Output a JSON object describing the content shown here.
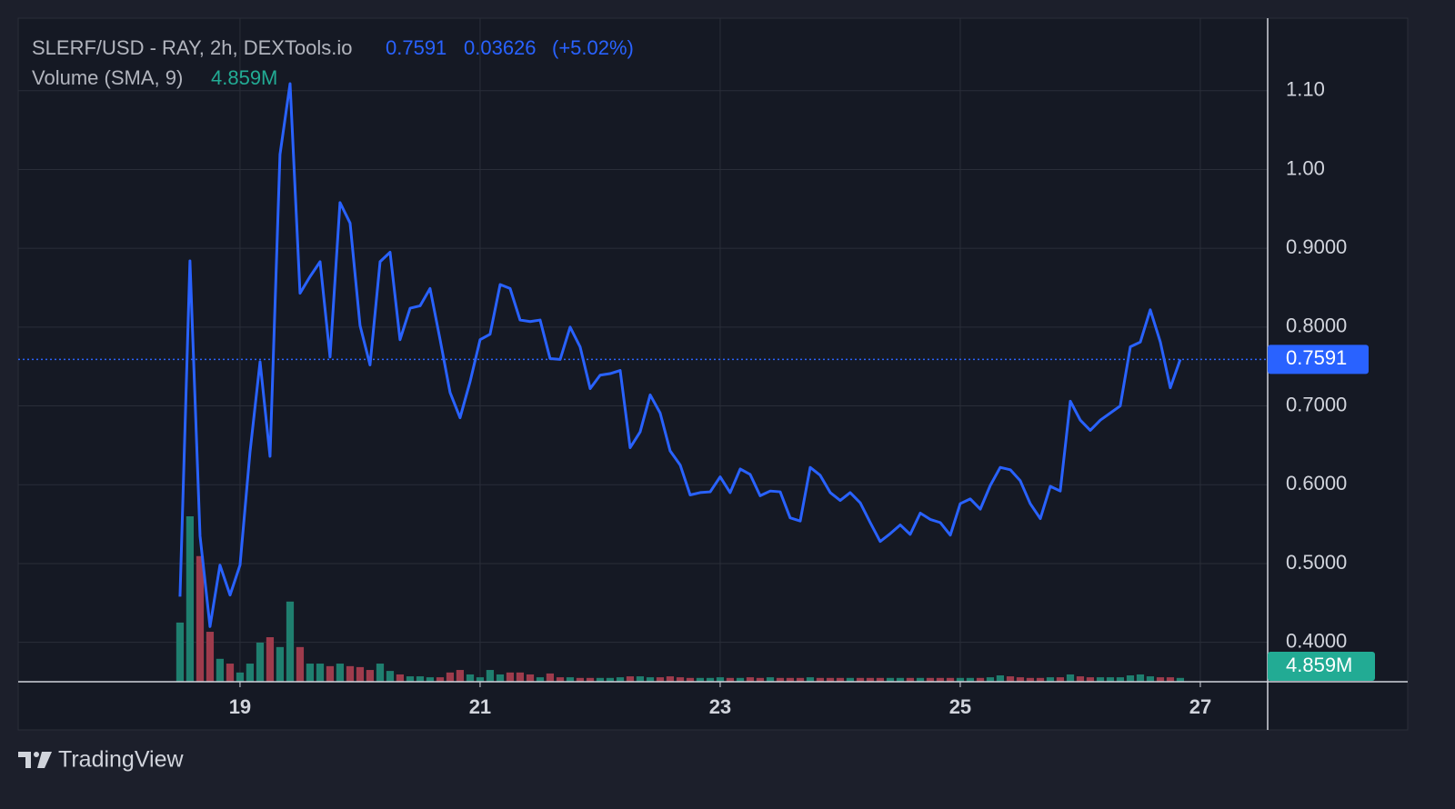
{
  "chart_data": {
    "type": "line",
    "title": "SLERF/USD - RAY, 2h, DEXTools.io",
    "last_price": 0.7591,
    "change": 0.03626,
    "change_percent": {
      "value": 5.02,
      "label": "(+5.02%)"
    },
    "volume_title": "Volume (SMA, 9)",
    "volume_sma": {
      "value": 4.859,
      "label": "4.859M"
    },
    "brand": "TradingView",
    "color": "#2962ff",
    "grid": true,
    "xlim": [
      17.152,
      27.561
    ],
    "xticks": [
      19,
      21,
      23,
      25,
      27
    ],
    "ylim": [
      0.35,
      1.192
    ],
    "yticks": [
      {
        "value": 1.1,
        "label": "1.10"
      },
      {
        "value": 1,
        "label": "1.00"
      },
      {
        "value": 0.9,
        "label": "0.9000"
      },
      {
        "value": 0.8,
        "label": "0.8000"
      },
      {
        "value": 0.7,
        "label": "0.7000"
      },
      {
        "value": 0.6,
        "label": "0.6000"
      },
      {
        "value": 0.5,
        "label": "0.5000"
      },
      {
        "value": 0.4,
        "label": "0.4000"
      }
    ],
    "x": [
      18.5,
      18.583,
      18.667,
      18.75,
      18.833,
      18.917,
      19,
      19.083,
      19.167,
      19.25,
      19.333,
      19.417,
      19.5,
      19.583,
      19.667,
      19.75,
      19.833,
      19.917,
      20,
      20.083,
      20.167,
      20.25,
      20.333,
      20.417,
      20.5,
      20.583,
      20.667,
      20.75,
      20.833,
      20.917,
      21,
      21.083,
      21.167,
      21.25,
      21.333,
      21.417,
      21.5,
      21.583,
      21.667,
      21.75,
      21.833,
      21.917,
      22,
      22.083,
      22.167,
      22.25,
      22.333,
      22.417,
      22.5,
      22.583,
      22.667,
      22.75,
      22.833,
      22.917,
      23,
      23.083,
      23.167,
      23.25,
      23.333,
      23.417,
      23.5,
      23.583,
      23.667,
      23.75,
      23.833,
      23.917,
      24,
      24.083,
      24.167,
      24.25,
      24.333,
      24.417,
      24.5,
      24.583,
      24.667,
      24.75,
      24.833,
      24.917,
      25,
      25.083,
      25.167,
      25.25,
      25.333,
      25.417,
      25.5,
      25.583,
      25.667,
      25.75,
      25.833,
      25.917,
      26,
      26.083,
      26.167,
      26.25,
      26.333,
      26.417,
      26.5,
      26.583,
      26.667,
      26.75,
      26.833
    ],
    "values": [
      0.458,
      0.884,
      0.535,
      0.42,
      0.498,
      0.46,
      0.498,
      0.641,
      0.756,
      0.636,
      1.019,
      1.109,
      0.843,
      0.864,
      0.883,
      0.762,
      0.958,
      0.932,
      0.802,
      0.752,
      0.883,
      0.895,
      0.784,
      0.824,
      0.827,
      0.849,
      0.784,
      0.717,
      0.685,
      0.731,
      0.784,
      0.791,
      0.854,
      0.849,
      0.809,
      0.807,
      0.809,
      0.76,
      0.759,
      0.8,
      0.775,
      0.722,
      0.739,
      0.741,
      0.745,
      0.647,
      0.667,
      0.714,
      0.691,
      0.643,
      0.625,
      0.587,
      0.59,
      0.591,
      0.61,
      0.59,
      0.62,
      0.613,
      0.586,
      0.592,
      0.591,
      0.558,
      0.554,
      0.622,
      0.612,
      0.59,
      0.58,
      0.59,
      0.577,
      0.552,
      0.528,
      0.538,
      0.549,
      0.537,
      0.564,
      0.556,
      0.552,
      0.536,
      0.576,
      0.582,
      0.569,
      0.599,
      0.622,
      0.619,
      0.605,
      0.576,
      0.557,
      0.598,
      0.592,
      0.706,
      0.682,
      0.669,
      0.682,
      0.691,
      0.7,
      0.775,
      0.781,
      0.822,
      0.781,
      0.723,
      0.7591
    ],
    "volume": {
      "up_color": "#1f7f6f",
      "down_color": "#9e3b4c",
      "sma_color": "#22ab94",
      "ylim": [
        0,
        200
      ],
      "values": [
        18.6,
        52,
        39.5,
        15.7,
        7.2,
        5.7,
        2.9,
        5.7,
        12.3,
        14,
        10.9,
        25.2,
        10.9,
        5.7,
        5.7,
        4.9,
        5.7,
        4.9,
        4.6,
        3.7,
        5.7,
        3.4,
        2.3,
        1.7,
        1.7,
        1.4,
        1.4,
        2.9,
        3.7,
        2.3,
        1.4,
        3.7,
        2.3,
        2.9,
        2.9,
        2.3,
        1.4,
        2.6,
        1.4,
        1.4,
        1.2,
        1.2,
        1.2,
        1.2,
        1.4,
        1.7,
        1.7,
        1.4,
        1.4,
        1.7,
        1.4,
        1.2,
        1.2,
        1.2,
        1.4,
        1.2,
        1.2,
        1.4,
        1.2,
        1.4,
        1.2,
        1.2,
        1.2,
        1.4,
        1.2,
        1.2,
        1.2,
        1.2,
        1.2,
        1.2,
        1.2,
        1.2,
        1.2,
        1.2,
        1.2,
        1.2,
        1.2,
        1.2,
        1.2,
        1.2,
        1.2,
        1.4,
        2,
        1.7,
        1.4,
        1.2,
        1.2,
        1.4,
        1.4,
        2.3,
        1.7,
        1.4,
        1.4,
        1.4,
        1.4,
        2,
        2.3,
        1.7,
        1.4,
        1.4,
        1.2
      ]
    }
  }
}
